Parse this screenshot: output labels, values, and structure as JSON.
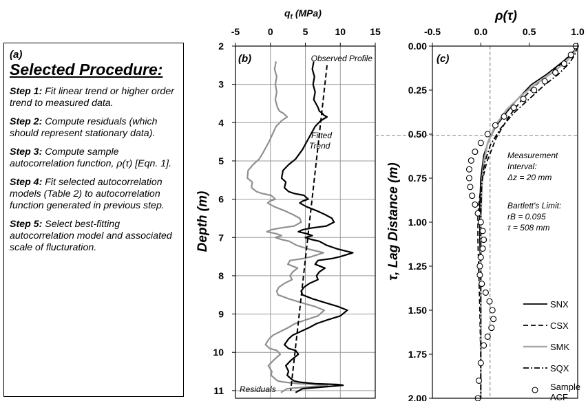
{
  "procedure": {
    "panel_label": "(a)",
    "heading": "Selected Procedure:",
    "steps": [
      {
        "label": "Step 1:",
        "text": " Fit linear trend or higher order trend to measured data."
      },
      {
        "label": "Step 2:",
        "text": " Compute residuals (which should represent stationary data)."
      },
      {
        "label": "Step 3:",
        "text": " Compute sample autocorrelation function, ρ(τ) [Eqn. 1]."
      },
      {
        "label": "Step 4:",
        "text": " Fit selected autocorrelation models (Table 2) to autocorrelation function generated in previous step."
      },
      {
        "label": "Step 5:",
        "text": " Select best-fitting autocorrelation model and associated scale of flucturation."
      }
    ]
  },
  "chart_data": [
    {
      "panel": "(b)",
      "type": "line",
      "xlabel": "qt (MPa)",
      "ylabel": "Depth (m)",
      "xlim": [
        -5,
        15
      ],
      "ylim": [
        2,
        11.2
      ],
      "y_inverted": true,
      "x_axis_position": "top",
      "grid": true,
      "xticks": [
        -5,
        0,
        5,
        10,
        15
      ],
      "yticks": [
        2,
        3,
        4,
        5,
        6,
        7,
        8,
        9,
        10,
        11
      ],
      "annotations": [
        "Observed Profile",
        "Fitted",
        "Trend",
        "Residuals"
      ],
      "series": [
        {
          "name": "Observed Profile",
          "color": "#000000",
          "style": "solid",
          "x": [
            6.2,
            6.0,
            6.3,
            6.1,
            6.4,
            6.2,
            6.8,
            7.0,
            7.4,
            7.6,
            8.1,
            7.2,
            6.4,
            5.8,
            5.2,
            4.6,
            4.2,
            3.6,
            2.6,
            1.8,
            1.6,
            2.2,
            2.0,
            2.6,
            3.4,
            4.8,
            5.4,
            4.6,
            4.2,
            5.2,
            6.6,
            7.8,
            8.8,
            9.1,
            8.0,
            6.0,
            4.6,
            4.0,
            5.2,
            6.0,
            5.0,
            5.8,
            7.0,
            8.0,
            9.6,
            11.8,
            10.0,
            8.8,
            6.8,
            6.4,
            7.8,
            7.0,
            6.6,
            6.8,
            5.6,
            4.8,
            4.4,
            4.6,
            6.0,
            7.8,
            9.6,
            11.0,
            10.0,
            8.2,
            6.6,
            5.6,
            4.4,
            3.2,
            2.6,
            2.0,
            2.6,
            3.6,
            4.0,
            3.0,
            2.2,
            2.6,
            2.4,
            3.0,
            3.4,
            4.2,
            6.4,
            9.6,
            10.4,
            4.6,
            3.6
          ],
          "y": [
            2.4,
            2.6,
            2.8,
            3.0,
            3.2,
            3.4,
            3.6,
            3.7,
            3.75,
            3.8,
            3.85,
            3.95,
            4.1,
            4.3,
            4.5,
            4.7,
            4.8,
            4.95,
            5.1,
            5.25,
            5.45,
            5.55,
            5.7,
            5.8,
            5.85,
            5.9,
            6.0,
            6.05,
            6.1,
            6.2,
            6.3,
            6.4,
            6.5,
            6.6,
            6.7,
            6.75,
            6.8,
            6.85,
            6.9,
            6.95,
            7.0,
            7.05,
            7.1,
            7.2,
            7.3,
            7.4,
            7.5,
            7.55,
            7.6,
            7.7,
            7.8,
            7.9,
            8.0,
            8.1,
            8.2,
            8.3,
            8.4,
            8.5,
            8.6,
            8.7,
            8.8,
            8.9,
            9.05,
            9.15,
            9.25,
            9.35,
            9.45,
            9.55,
            9.65,
            9.8,
            9.9,
            9.95,
            10.05,
            10.2,
            10.35,
            10.5,
            10.6,
            10.7,
            10.75,
            10.78,
            10.82,
            10.84,
            10.86,
            10.95,
            11.05
          ]
        },
        {
          "name": "Fitted Trend",
          "color": "#000000",
          "style": "dashed",
          "x": [
            8.1,
            2.9
          ],
          "y": [
            2.5,
            11.0
          ]
        },
        {
          "name": "Residuals",
          "color": "#909090",
          "style": "solid",
          "x": [
            0.8,
            0.6,
            0.9,
            0.7,
            0.9,
            0.7,
            1.0,
            1.3,
            1.8,
            2.1,
            2.4,
            1.6,
            0.8,
            0.3,
            -0.2,
            -0.8,
            -1.1,
            -1.6,
            -2.5,
            -3.2,
            -3.3,
            -2.6,
            -2.7,
            -2.0,
            -1.2,
            0.1,
            0.7,
            -0.1,
            -0.4,
            0.6,
            2.0,
            3.2,
            4.2,
            4.4,
            3.4,
            1.5,
            0.1,
            -0.5,
            0.8,
            1.6,
            0.7,
            1.5,
            2.7,
            3.7,
            5.4,
            7.6,
            5.9,
            4.7,
            2.8,
            2.5,
            3.9,
            3.2,
            2.8,
            3.1,
            2.0,
            1.2,
            0.9,
            1.1,
            2.6,
            4.4,
            6.3,
            7.7,
            6.8,
            5.1,
            3.5,
            2.6,
            1.5,
            0.4,
            -0.2,
            -0.7,
            -0.1,
            0.9,
            1.4,
            0.5,
            -0.3,
            0.2,
            0.1,
            0.7,
            1.1,
            2.0,
            4.2,
            7.4,
            8.2,
            2.4,
            1.5
          ],
          "y": [
            2.4,
            2.6,
            2.8,
            3.0,
            3.2,
            3.4,
            3.6,
            3.7,
            3.75,
            3.8,
            3.85,
            3.95,
            4.1,
            4.3,
            4.5,
            4.7,
            4.8,
            4.95,
            5.1,
            5.25,
            5.45,
            5.55,
            5.7,
            5.8,
            5.85,
            5.9,
            6.0,
            6.05,
            6.1,
            6.2,
            6.3,
            6.4,
            6.5,
            6.6,
            6.7,
            6.75,
            6.8,
            6.85,
            6.9,
            6.95,
            7.0,
            7.05,
            7.1,
            7.2,
            7.3,
            7.4,
            7.5,
            7.55,
            7.6,
            7.7,
            7.8,
            7.9,
            8.0,
            8.1,
            8.2,
            8.3,
            8.4,
            8.5,
            8.6,
            8.7,
            8.8,
            8.9,
            9.05,
            9.15,
            9.25,
            9.35,
            9.45,
            9.55,
            9.65,
            9.8,
            9.9,
            9.95,
            10.05,
            10.2,
            10.35,
            10.5,
            10.6,
            10.7,
            10.75,
            10.78,
            10.82,
            10.84,
            10.86,
            10.95,
            11.05
          ]
        }
      ]
    },
    {
      "panel": "(c)",
      "type": "line",
      "xlabel": "ρ(τ)",
      "ylabel": "τ, Lag Distance (m)",
      "xlim": [
        -0.5,
        1.0
      ],
      "ylim": [
        0.0,
        2.0
      ],
      "y_inverted": true,
      "x_axis_position": "top",
      "grid": false,
      "xticks": [
        "-0.5",
        "0.0",
        "0.5",
        "1.0"
      ],
      "yticks": [
        "0.00",
        "0.25",
        "0.50",
        "0.75",
        "1.00",
        "1.25",
        "1.50",
        "1.75",
        "2.00"
      ],
      "legend_position": "bottom-right",
      "annotation": {
        "l1": "Measurement",
        "l2": "Interval:",
        "l3": "Δz = 20 mm",
        "l4": "Bartlett's Limit:",
        "l5": "rB = 0.095",
        "l6": "τ = 508 mm"
      },
      "bartlett_limit": {
        "rho": 0.095,
        "tau": 0.508
      },
      "series": [
        {
          "name": "SNX",
          "color": "#000000",
          "style": "solid",
          "x": [
            1.0,
            0.93,
            0.82,
            0.68,
            0.52,
            0.38,
            0.26,
            0.15,
            0.08,
            0.03,
            0.0,
            -0.01,
            -0.01,
            0.0,
            0.0,
            0.0
          ],
          "y": [
            0.0,
            0.05,
            0.1,
            0.16,
            0.22,
            0.3,
            0.38,
            0.46,
            0.54,
            0.62,
            0.75,
            0.9,
            1.1,
            1.4,
            1.7,
            2.0
          ]
        },
        {
          "name": "CSX",
          "color": "#000000",
          "style": "dashed",
          "x": [
            1.0,
            0.92,
            0.83,
            0.71,
            0.57,
            0.43,
            0.29,
            0.16,
            0.06,
            0.0,
            -0.03,
            -0.03,
            -0.02,
            -0.01,
            0.0,
            0.0
          ],
          "y": [
            0.0,
            0.05,
            0.1,
            0.16,
            0.22,
            0.3,
            0.4,
            0.52,
            0.66,
            0.8,
            0.95,
            1.1,
            1.3,
            1.5,
            1.8,
            2.0
          ]
        },
        {
          "name": "SMK",
          "color": "#a8a8a8",
          "style": "solid",
          "x": [
            1.0,
            0.96,
            0.88,
            0.74,
            0.58,
            0.42,
            0.27,
            0.15,
            0.07,
            0.03,
            0.01,
            0.0,
            0.0,
            0.0
          ],
          "y": [
            0.0,
            0.04,
            0.09,
            0.15,
            0.21,
            0.28,
            0.36,
            0.45,
            0.55,
            0.66,
            0.8,
            1.0,
            1.4,
            2.0
          ]
        },
        {
          "name": "SQX",
          "color": "#000000",
          "style": "dashdot",
          "x": [
            1.0,
            0.97,
            0.91,
            0.8,
            0.66,
            0.5,
            0.34,
            0.2,
            0.1,
            0.04,
            0.01,
            0.0,
            0.0,
            0.0
          ],
          "y": [
            0.0,
            0.05,
            0.1,
            0.16,
            0.22,
            0.3,
            0.38,
            0.47,
            0.56,
            0.66,
            0.78,
            0.95,
            1.3,
            2.0
          ]
        },
        {
          "name": "Sample ACF",
          "color": "#000000",
          "style": "markers",
          "x": [
            0.98,
            0.93,
            0.86,
            0.77,
            0.66,
            0.55,
            0.44,
            0.34,
            0.24,
            0.15,
            0.07,
            0.0,
            -0.06,
            -0.1,
            -0.12,
            -0.12,
            -0.11,
            -0.09,
            -0.06,
            -0.03,
            0.0,
            0.02,
            0.03,
            0.02,
            0.0,
            -0.01,
            -0.01,
            0.01,
            0.05,
            0.09,
            0.12,
            0.13,
            0.11,
            0.07,
            0.03,
            0.0,
            -0.02,
            -0.03
          ],
          "y": [
            0.0,
            0.05,
            0.1,
            0.15,
            0.2,
            0.25,
            0.3,
            0.35,
            0.4,
            0.45,
            0.5,
            0.55,
            0.6,
            0.65,
            0.7,
            0.75,
            0.8,
            0.85,
            0.9,
            0.95,
            1.0,
            1.05,
            1.1,
            1.15,
            1.2,
            1.25,
            1.3,
            1.35,
            1.4,
            1.45,
            1.5,
            1.55,
            1.6,
            1.65,
            1.7,
            1.8,
            1.9,
            2.0
          ]
        }
      ]
    }
  ]
}
